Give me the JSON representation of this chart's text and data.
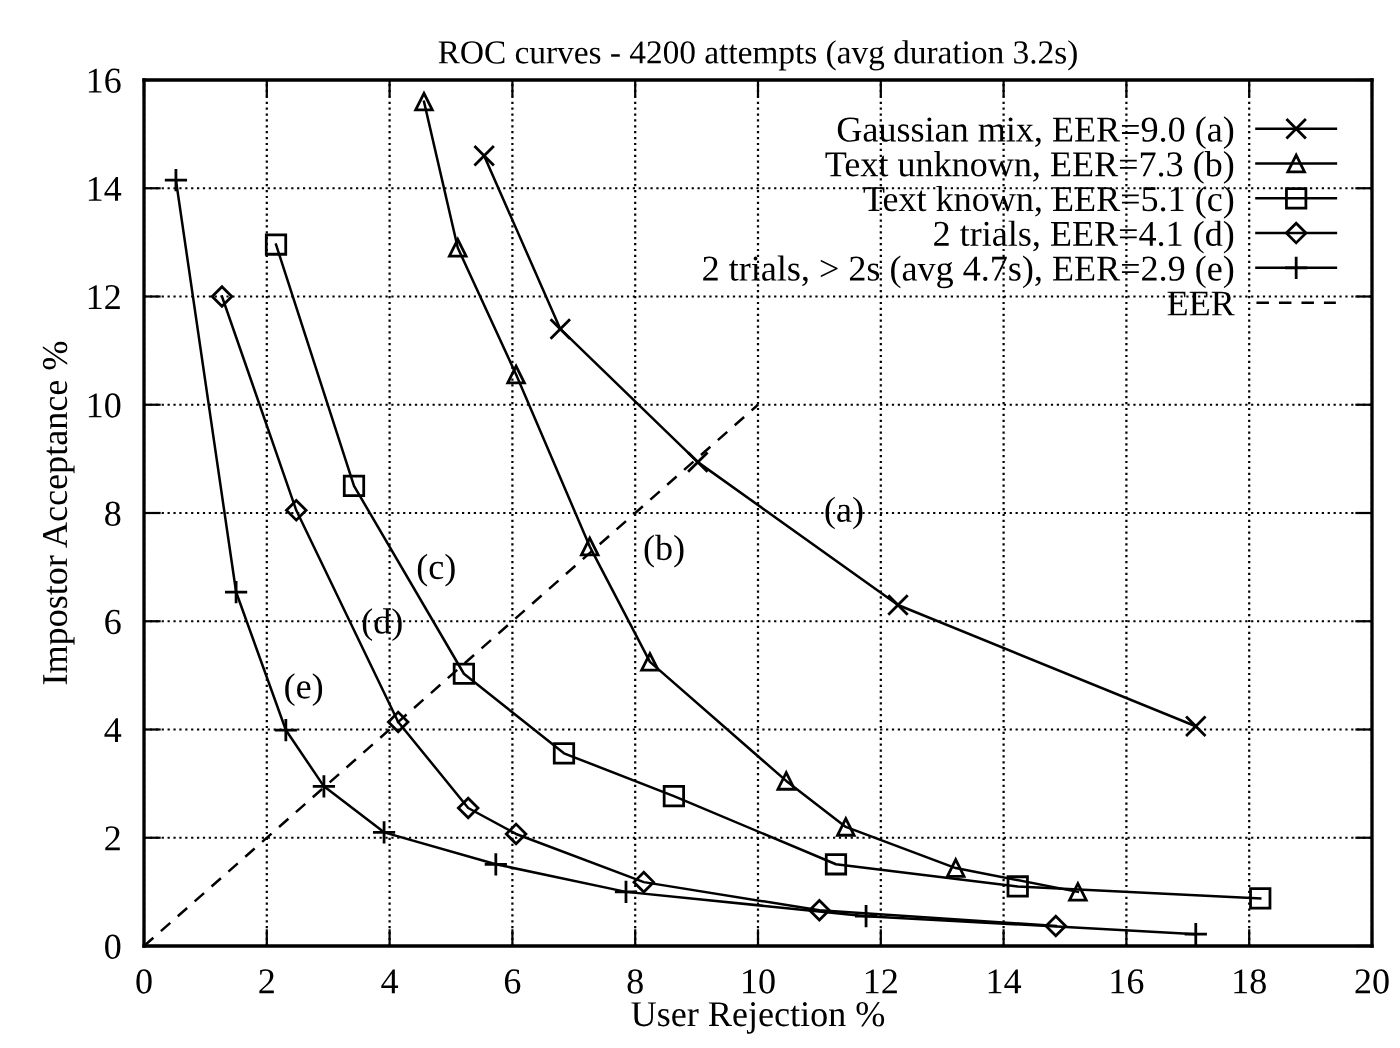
{
  "chart_data": {
    "type": "line",
    "title": "ROC curves - 4200 attempts (avg duration 3.2s)",
    "xlabel": "User Rejection %",
    "ylabel": "Impostor Acceptance %",
    "xlim": [
      0,
      20
    ],
    "ylim": [
      0,
      16
    ],
    "xticks": [
      0,
      2,
      4,
      6,
      8,
      10,
      12,
      14,
      16,
      18,
      20
    ],
    "yticks": [
      0,
      2,
      4,
      6,
      8,
      10,
      12,
      14,
      16
    ],
    "grid": true,
    "legend": "top right",
    "series": [
      {
        "name": "Gaussian mix, EER=9.0 (a)",
        "color": "#000000",
        "marker": "cross",
        "line_style": "solid",
        "x": [
          5.54,
          6.78,
          9.02,
          12.28,
          17.13
        ],
        "values": [
          14.6,
          11.4,
          8.94,
          6.3,
          4.06
        ]
      },
      {
        "name": "Text unknown, EER=7.3 (b)",
        "color": "#000000",
        "marker": "triangle",
        "line_style": "solid",
        "x": [
          4.56,
          5.11,
          6.06,
          7.26,
          8.24,
          10.46,
          11.43,
          13.22,
          15.21
        ],
        "values": [
          15.6,
          12.9,
          10.56,
          7.38,
          5.25,
          3.05,
          2.2,
          1.44,
          1.0
        ]
      },
      {
        "name": "Text known, EER=5.1 (c)",
        "color": "#000000",
        "marker": "square",
        "line_style": "solid",
        "x": [
          2.15,
          3.42,
          5.21,
          6.84,
          8.63,
          11.27,
          14.23,
          18.18
        ],
        "values": [
          12.96,
          8.5,
          5.03,
          3.56,
          2.77,
          1.51,
          1.1,
          0.88
        ]
      },
      {
        "name": "2 trials, EER=4.1 (d)",
        "color": "#000000",
        "marker": "diamond",
        "line_style": "solid",
        "x": [
          1.27,
          2.48,
          4.14,
          5.28,
          6.06,
          8.14,
          11.0,
          14.85
        ],
        "values": [
          12.0,
          8.05,
          4.14,
          2.55,
          2.07,
          1.18,
          0.66,
          0.37
        ]
      },
      {
        "name": "2 trials, > 2s (avg 4.7s), EER=2.9 (e)",
        "color": "#000000",
        "marker": "plus",
        "line_style": "solid",
        "x": [
          0.52,
          1.5,
          2.31,
          2.93,
          3.91,
          5.73,
          7.85,
          11.76,
          17.13
        ],
        "values": [
          14.15,
          6.54,
          3.99,
          2.95,
          2.1,
          1.51,
          1.0,
          0.55,
          0.22
        ]
      },
      {
        "name": "EER",
        "color": "#000000",
        "marker": "none",
        "line_style": "dashed",
        "x": [
          0,
          10
        ],
        "values": [
          0,
          10
        ]
      }
    ],
    "annotations": [
      "(a)",
      "(b)",
      "(c)",
      "(d)",
      "(e)"
    ]
  }
}
